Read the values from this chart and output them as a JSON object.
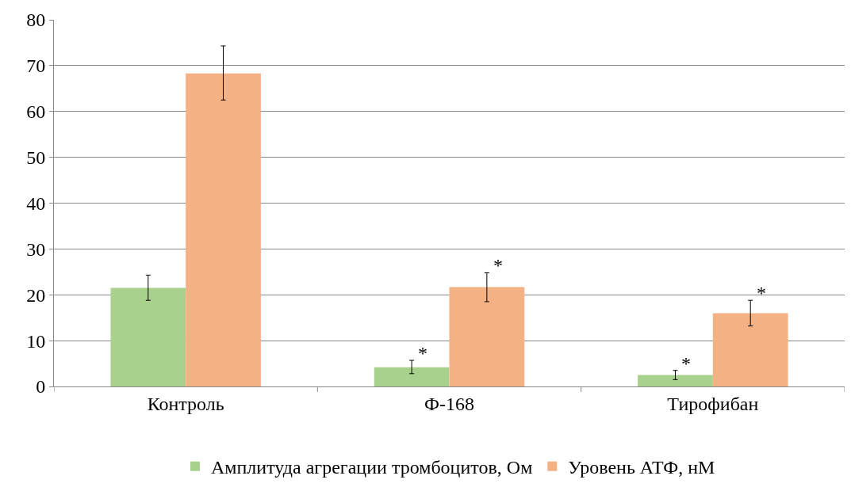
{
  "chart_data": {
    "type": "bar",
    "categories": [
      "Контроль",
      "Ф-168",
      "Тирофибан"
    ],
    "series": [
      {
        "name": "Амплитуда агрегации тромбоцитов, Ом",
        "color": "#a9d18e",
        "values": [
          21.5,
          4.2,
          2.5
        ],
        "errors": [
          [
            18.8,
            24.3
          ],
          [
            2.8,
            5.7
          ],
          [
            1.5,
            3.5
          ]
        ],
        "value_labels": [
          null,
          "*",
          "*"
        ]
      },
      {
        "name": "Уровень АТФ, нМ",
        "color": "#f4b183",
        "values": [
          68.3,
          21.7,
          16
        ],
        "errors": [
          [
            62.5,
            74.3
          ],
          [
            18.5,
            24.8
          ],
          [
            13.2,
            18.8
          ]
        ],
        "value_labels": [
          null,
          "*",
          "*"
        ]
      }
    ],
    "ylim": [
      0,
      80
    ],
    "yticks": [
      0,
      10,
      20,
      30,
      40,
      50,
      60,
      70,
      80
    ],
    "grid": "y",
    "legend": "bottom"
  }
}
